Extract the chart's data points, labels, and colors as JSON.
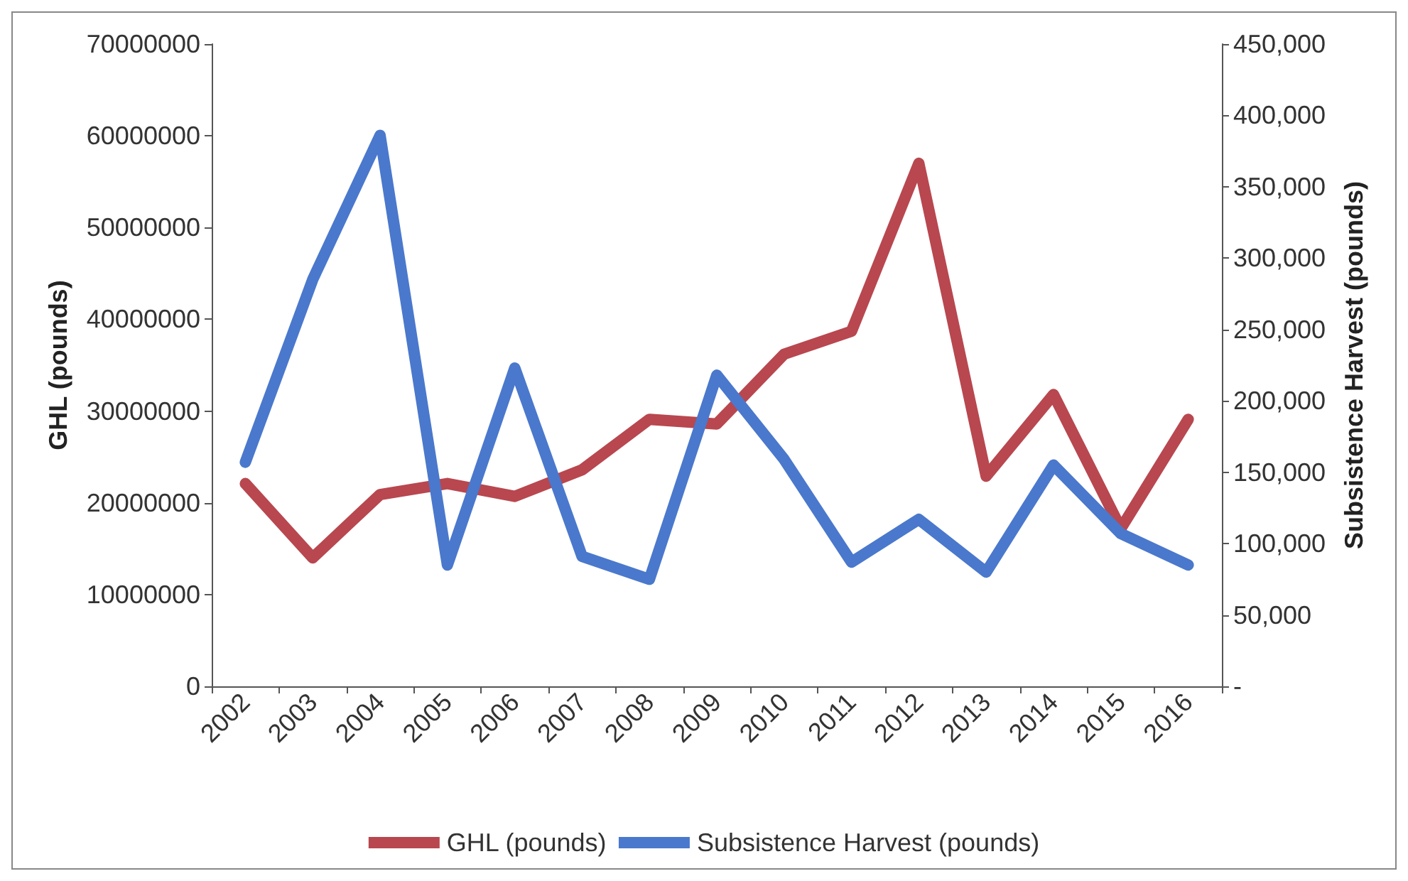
{
  "chart_data": {
    "type": "line",
    "ylabel": "GHL (pounds)",
    "y2label": "Subsistence Harvest (pounds)",
    "categories": [
      "2002",
      "2003",
      "2004",
      "2005",
      "2006",
      "2007",
      "2008",
      "2009",
      "2010",
      "2011",
      "2012",
      "2013",
      "2014",
      "2015",
      "2016"
    ],
    "series": [
      {
        "name": "GHL (pounds)",
        "color": "#b8474f",
        "values": [
          22100000,
          14000000,
          20900000,
          22100000,
          20700000,
          23600000,
          29100000,
          28600000,
          36200000,
          38700000,
          57000000,
          22900000,
          31800000,
          17200000,
          29100000
        ]
      },
      {
        "name": "Subsistence Harvest (pounds)",
        "color": "#4a78cc",
        "axis": "y2",
        "values": [
          157000,
          285000,
          386000,
          85000,
          223000,
          91000,
          75000,
          218000,
          159000,
          87000,
          117000,
          80000,
          155000,
          107000,
          85000
        ]
      }
    ],
    "ylim": [
      0,
      70000000
    ],
    "yticks": [
      0,
      10000000,
      20000000,
      30000000,
      40000000,
      50000000,
      60000000,
      70000000
    ],
    "y2lim": [
      0,
      450000
    ],
    "y2ticks": [
      {
        "value": 0,
        "label": "-"
      },
      {
        "value": 50000,
        "label": "50,000"
      },
      {
        "value": 100000,
        "label": "100,000"
      },
      {
        "value": 150000,
        "label": "150,000"
      },
      {
        "value": 200000,
        "label": "200,000"
      },
      {
        "value": 250000,
        "label": "250,000"
      },
      {
        "value": 300000,
        "label": "300,000"
      },
      {
        "value": 350000,
        "label": "350,000"
      },
      {
        "value": 400000,
        "label": "400,000"
      },
      {
        "value": 450000,
        "label": "450,000"
      }
    ],
    "grid": false,
    "legend": "bottom",
    "marker": "none",
    "line_style": "solid"
  }
}
